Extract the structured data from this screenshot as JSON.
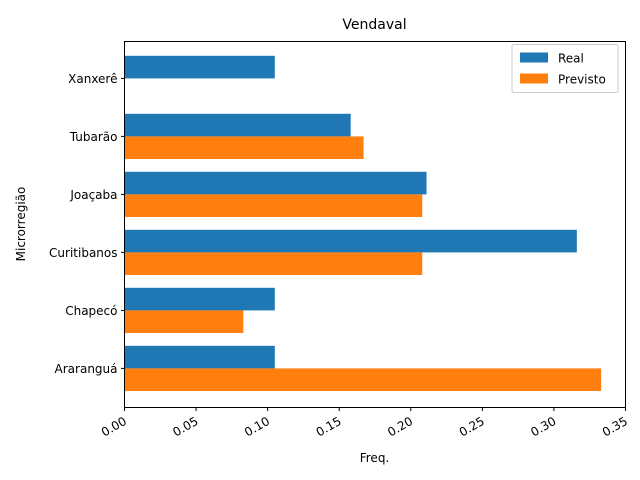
{
  "chart_data": {
    "type": "bar",
    "orientation": "horizontal",
    "title": "Vendaval",
    "xlabel": "Freq.",
    "ylabel": "Microrregião",
    "categories": [
      "Araranguá",
      "Chapecó",
      "Curitibanos",
      "Joaçaba",
      "Tubarão",
      "Xanxerê"
    ],
    "series": [
      {
        "name": "Real",
        "color": "#1f77b4",
        "values": [
          0.105,
          0.105,
          0.316,
          0.211,
          0.158,
          0.105
        ]
      },
      {
        "name": "Previsto",
        "color": "#ff7f0e",
        "values": [
          0.333,
          0.083,
          0.208,
          0.208,
          0.167,
          0.0
        ]
      }
    ],
    "xlim": [
      0.0,
      0.35
    ],
    "xticks": [
      "0.00",
      "0.05",
      "0.10",
      "0.15",
      "0.20",
      "0.25",
      "0.30",
      "0.35"
    ],
    "xtick_values": [
      0.0,
      0.05,
      0.1,
      0.15,
      0.2,
      0.25,
      0.3,
      0.35
    ],
    "grid": false,
    "legend_position": "top-right"
  }
}
